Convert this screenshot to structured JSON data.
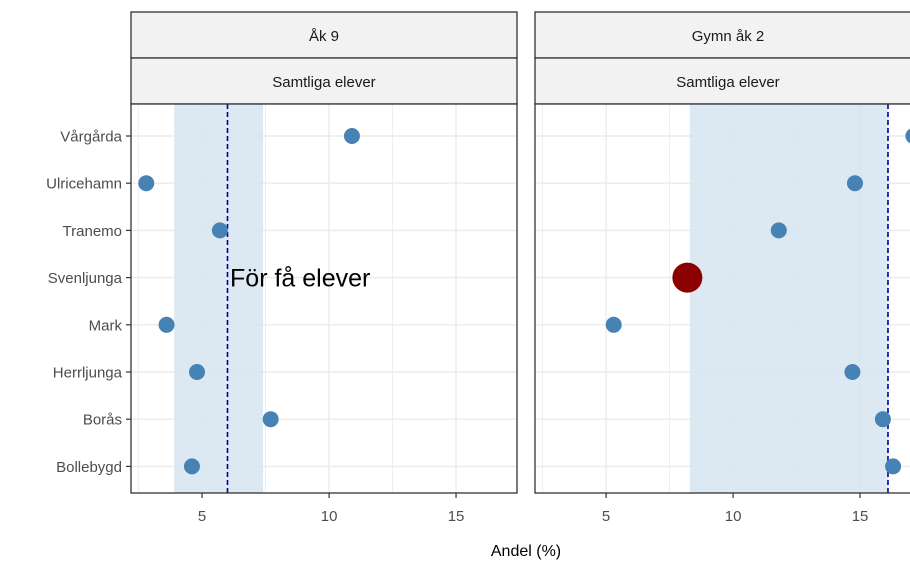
{
  "chart_data": {
    "type": "scatter",
    "xlabel": "Andel (%)",
    "categories": [
      "Vårgårda",
      "Ulricehamn",
      "Tranemo",
      "Svenljunga",
      "Mark",
      "Herrljunga",
      "Borås",
      "Bollebygd"
    ],
    "x_ticks": [
      "5",
      "10",
      "15"
    ],
    "xlim": [
      2.2,
      17.4
    ],
    "grid": true,
    "panels": [
      {
        "strip_top": "Åk 9",
        "strip_bottom": "Samtliga elever",
        "band": [
          3.9,
          7.4
        ],
        "reference_line": 6.0,
        "annotation": {
          "text": "För få elever",
          "category": "Svenljunga",
          "x": 6.1
        },
        "points": [
          {
            "category": "Vårgårda",
            "value": 10.9,
            "highlight": false
          },
          {
            "category": "Ulricehamn",
            "value": 2.8,
            "highlight": false
          },
          {
            "category": "Tranemo",
            "value": 5.7,
            "highlight": false
          },
          {
            "category": "Mark",
            "value": 3.6,
            "highlight": false
          },
          {
            "category": "Herrljunga",
            "value": 4.8,
            "highlight": false
          },
          {
            "category": "Borås",
            "value": 7.7,
            "highlight": false
          },
          {
            "category": "Bollebygd",
            "value": 4.6,
            "highlight": false
          }
        ]
      },
      {
        "strip_top": "Gymn åk 2",
        "strip_bottom": "Samtliga elever",
        "band": [
          8.3,
          16.1
        ],
        "reference_line": 16.1,
        "points": [
          {
            "category": "Vårgårda",
            "value": 17.1,
            "highlight": false
          },
          {
            "category": "Ulricehamn",
            "value": 14.8,
            "highlight": false
          },
          {
            "category": "Tranemo",
            "value": 11.8,
            "highlight": false
          },
          {
            "category": "Svenljunga",
            "value": 8.2,
            "highlight": true
          },
          {
            "category": "Mark",
            "value": 5.3,
            "highlight": false
          },
          {
            "category": "Herrljunga",
            "value": 14.7,
            "highlight": false
          },
          {
            "category": "Borås",
            "value": 15.9,
            "highlight": false
          },
          {
            "category": "Bollebygd",
            "value": 16.3,
            "highlight": false
          }
        ]
      }
    ],
    "colors": {
      "point": "#4682b4",
      "highlight": "#8b0000",
      "band": "#d7e5f0",
      "reference_line": "#0000aa",
      "strip_bg": "#f2f2f2",
      "grid": "#ebebeb"
    }
  }
}
